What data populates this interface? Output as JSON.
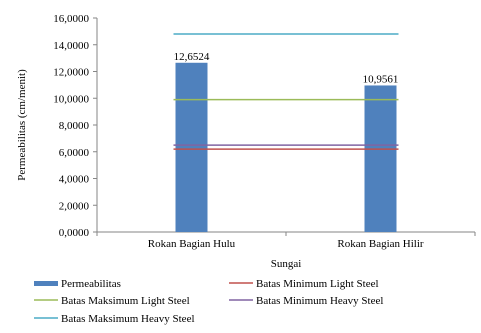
{
  "chart_data": {
    "type": "bar",
    "categories": [
      "Rokan Bagian Hulu",
      "Rokan Bagian Hilir"
    ],
    "series": [
      {
        "name": "Permeabilitas",
        "kind": "bar",
        "values": [
          12.6524,
          10.9561
        ],
        "color": "#4f81bd"
      },
      {
        "name": "Batas Minimum Light Steel",
        "kind": "line",
        "values": [
          6.2,
          6.2
        ],
        "color": "#c0504d"
      },
      {
        "name": "Batas Maksimum Light Steel",
        "kind": "line",
        "values": [
          9.9,
          9.9
        ],
        "color": "#9bbb59"
      },
      {
        "name": "Batas Minimum Heavy Steel",
        "kind": "line",
        "values": [
          6.5,
          6.5
        ],
        "color": "#8064a2"
      },
      {
        "name": "Batas Maksimum Heavy Steel",
        "kind": "line",
        "values": [
          14.8,
          14.8
        ],
        "color": "#4bacc6"
      }
    ],
    "data_labels": [
      "12,6524",
      "10,9561"
    ],
    "xlabel": "Sungai",
    "ylabel": "Permeabilitas (cm/menit)",
    "ylim": [
      0,
      16
    ],
    "yticks": [
      0,
      2,
      4,
      6,
      8,
      10,
      12,
      14,
      16
    ],
    "ytick_labels": [
      "0,0000",
      "2,0000",
      "4,0000",
      "6,0000",
      "8,0000",
      "10,0000",
      "12,0000",
      "14,0000",
      "16,0000"
    ],
    "grid": false,
    "legend_position": "bottom"
  }
}
